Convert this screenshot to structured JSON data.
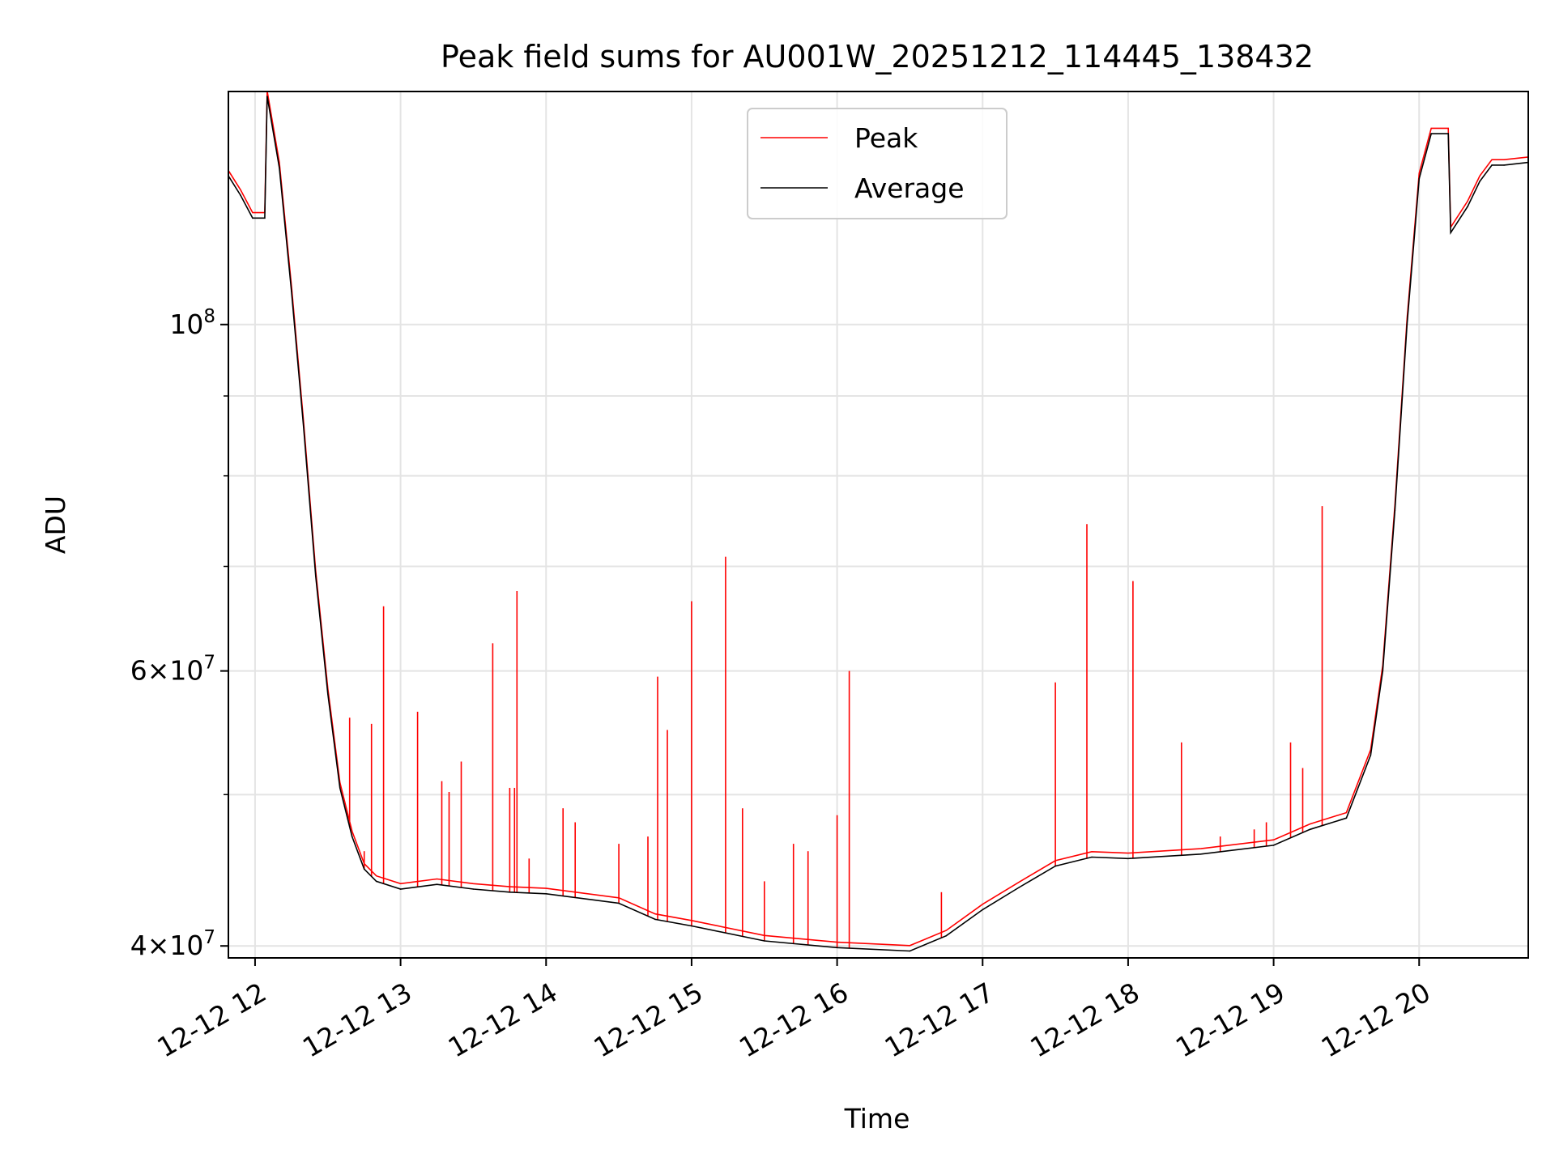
{
  "chart_data": {
    "type": "line",
    "title": "Peak field sums for AU001W_20251212_114445_138432",
    "xlabel": "Time",
    "ylabel": "ADU",
    "yscale": "log",
    "xlim": [
      "2025-12-12T11:49",
      "2025-12-12T20:45"
    ],
    "ylim": [
      39300000,
      141000000
    ],
    "grid": true,
    "legend": {
      "location": "upper center",
      "entries": [
        "Peak",
        "Average"
      ]
    },
    "colors": {
      "Peak": "#ff0000",
      "Average": "#000000"
    },
    "x_ticks": [
      {
        "t": "2025-12-12T12:00",
        "label": "12-12 12"
      },
      {
        "t": "2025-12-12T13:00",
        "label": "12-12 13"
      },
      {
        "t": "2025-12-12T14:00",
        "label": "12-12 14"
      },
      {
        "t": "2025-12-12T15:00",
        "label": "12-12 15"
      },
      {
        "t": "2025-12-12T16:00",
        "label": "12-12 16"
      },
      {
        "t": "2025-12-12T17:00",
        "label": "12-12 17"
      },
      {
        "t": "2025-12-12T18:00",
        "label": "12-12 18"
      },
      {
        "t": "2025-12-12T19:00",
        "label": "12-12 19"
      },
      {
        "t": "2025-12-12T20:00",
        "label": "12-12 20"
      }
    ],
    "y_major_ticks": [
      {
        "value": 40000000,
        "mantissa": "4",
        "exponent": "7"
      },
      {
        "value": 60000000,
        "mantissa": "6",
        "exponent": "7"
      },
      {
        "value": 100000000,
        "mantissa": "",
        "exponent": "8"
      }
    ],
    "y_minor_ticks": [
      50000000,
      70000000,
      80000000,
      90000000
    ],
    "series": [
      {
        "name": "Average",
        "points": [
          [
            "2025-12-12T11:49",
            124500000.0
          ],
          [
            "2025-12-12T11:54",
            121000000.0
          ],
          [
            "2025-12-12T11:59",
            117000000.0
          ],
          [
            "2025-12-12T12:04",
            117000000.0
          ],
          [
            "2025-12-12T12:05",
            140000000.0
          ],
          [
            "2025-12-12T12:10",
            126000000.0
          ],
          [
            "2025-12-12T12:15",
            105000000.0
          ],
          [
            "2025-12-12T12:20",
            86000000.0
          ],
          [
            "2025-12-12T12:25",
            69000000.0
          ],
          [
            "2025-12-12T12:30",
            58000000.0
          ],
          [
            "2025-12-12T12:35",
            50500000.0
          ],
          [
            "2025-12-12T12:40",
            47000000.0
          ],
          [
            "2025-12-12T12:45",
            44800000.0
          ],
          [
            "2025-12-12T12:50",
            44000000.0
          ],
          [
            "2025-12-12T13:00",
            43500000.0
          ],
          [
            "2025-12-12T13:15",
            43800000.0
          ],
          [
            "2025-12-12T13:30",
            43500000.0
          ],
          [
            "2025-12-12T13:45",
            43300000.0
          ],
          [
            "2025-12-12T14:00",
            43200000.0
          ],
          [
            "2025-12-12T14:30",
            42600000.0
          ],
          [
            "2025-12-12T14:45",
            41600000.0
          ],
          [
            "2025-12-12T15:00",
            41200000.0
          ],
          [
            "2025-12-12T15:30",
            40300000.0
          ],
          [
            "2025-12-12T16:00",
            39900000.0
          ],
          [
            "2025-12-12T16:30",
            39700000.0
          ],
          [
            "2025-12-12T16:45",
            40600000.0
          ],
          [
            "2025-12-12T17:00",
            42200000.0
          ],
          [
            "2025-12-12T17:15",
            43600000.0
          ],
          [
            "2025-12-12T17:30",
            45000000.0
          ],
          [
            "2025-12-12T17:45",
            45600000.0
          ],
          [
            "2025-12-12T18:00",
            45500000.0
          ],
          [
            "2025-12-12T18:30",
            45800000.0
          ],
          [
            "2025-12-12T19:00",
            46400000.0
          ],
          [
            "2025-12-12T19:15",
            47500000.0
          ],
          [
            "2025-12-12T19:30",
            48300000.0
          ],
          [
            "2025-12-12T19:40",
            53000000.0
          ],
          [
            "2025-12-12T19:45",
            60000000.0
          ],
          [
            "2025-12-12T19:50",
            76000000.0
          ],
          [
            "2025-12-12T19:55",
            100000000.0
          ],
          [
            "2025-12-12T20:00",
            124000000.0
          ],
          [
            "2025-12-12T20:05",
            132500000.0
          ],
          [
            "2025-12-12T20:12",
            132500000.0
          ],
          [
            "2025-12-12T20:13",
            114500000.0
          ],
          [
            "2025-12-12T20:20",
            119000000.0
          ],
          [
            "2025-12-12T20:25",
            123500000.0
          ],
          [
            "2025-12-12T20:30",
            126500000.0
          ],
          [
            "2025-12-12T20:35",
            126500000.0
          ],
          [
            "2025-12-12T20:45",
            127000000.0
          ]
        ]
      },
      {
        "name": "Peak",
        "spikes": [
          [
            "2025-12-12T12:39",
            56000000.0
          ],
          [
            "2025-12-12T12:45",
            46000000.0
          ],
          [
            "2025-12-12T12:48",
            55500000.0
          ],
          [
            "2025-12-12T12:53",
            66000000.0
          ],
          [
            "2025-12-12T13:07",
            56500000.0
          ],
          [
            "2025-12-12T13:17",
            51000000.0
          ],
          [
            "2025-12-12T13:20",
            50200000.0
          ],
          [
            "2025-12-12T13:25",
            52500000.0
          ],
          [
            "2025-12-12T13:38",
            62500000.0
          ],
          [
            "2025-12-12T13:45",
            50500000.0
          ],
          [
            "2025-12-12T13:47",
            50500000.0
          ],
          [
            "2025-12-12T13:48",
            67500000.0
          ],
          [
            "2025-12-12T13:53",
            45500000.0
          ],
          [
            "2025-12-12T14:07",
            49000000.0
          ],
          [
            "2025-12-12T14:12",
            48000000.0
          ],
          [
            "2025-12-12T14:30",
            46500000.0
          ],
          [
            "2025-12-12T14:42",
            47000000.0
          ],
          [
            "2025-12-12T14:46",
            59500000.0
          ],
          [
            "2025-12-12T14:50",
            55000000.0
          ],
          [
            "2025-12-12T15:00",
            66500000.0
          ],
          [
            "2025-12-12T15:14",
            71000000.0
          ],
          [
            "2025-12-12T15:21",
            49000000.0
          ],
          [
            "2025-12-12T15:30",
            44000000.0
          ],
          [
            "2025-12-12T15:42",
            46500000.0
          ],
          [
            "2025-12-12T15:48",
            46000000.0
          ],
          [
            "2025-12-12T16:00",
            48500000.0
          ],
          [
            "2025-12-12T16:05",
            60000000.0
          ],
          [
            "2025-12-12T16:43",
            43300000.0
          ],
          [
            "2025-12-12T17:30",
            59000000.0
          ],
          [
            "2025-12-12T17:43",
            74500000.0
          ],
          [
            "2025-12-12T17:55",
            45500000.0
          ],
          [
            "2025-12-12T18:02",
            68500000.0
          ],
          [
            "2025-12-12T18:22",
            54000000.0
          ],
          [
            "2025-12-12T18:38",
            47000000.0
          ],
          [
            "2025-12-12T18:52",
            47500000.0
          ],
          [
            "2025-12-12T18:57",
            48000000.0
          ],
          [
            "2025-12-12T19:07",
            54000000.0
          ],
          [
            "2025-12-12T19:12",
            52000000.0
          ],
          [
            "2025-12-12T19:20",
            76500000.0
          ],
          [
            "2025-12-12T19:25",
            48000000.0
          ]
        ]
      }
    ]
  }
}
